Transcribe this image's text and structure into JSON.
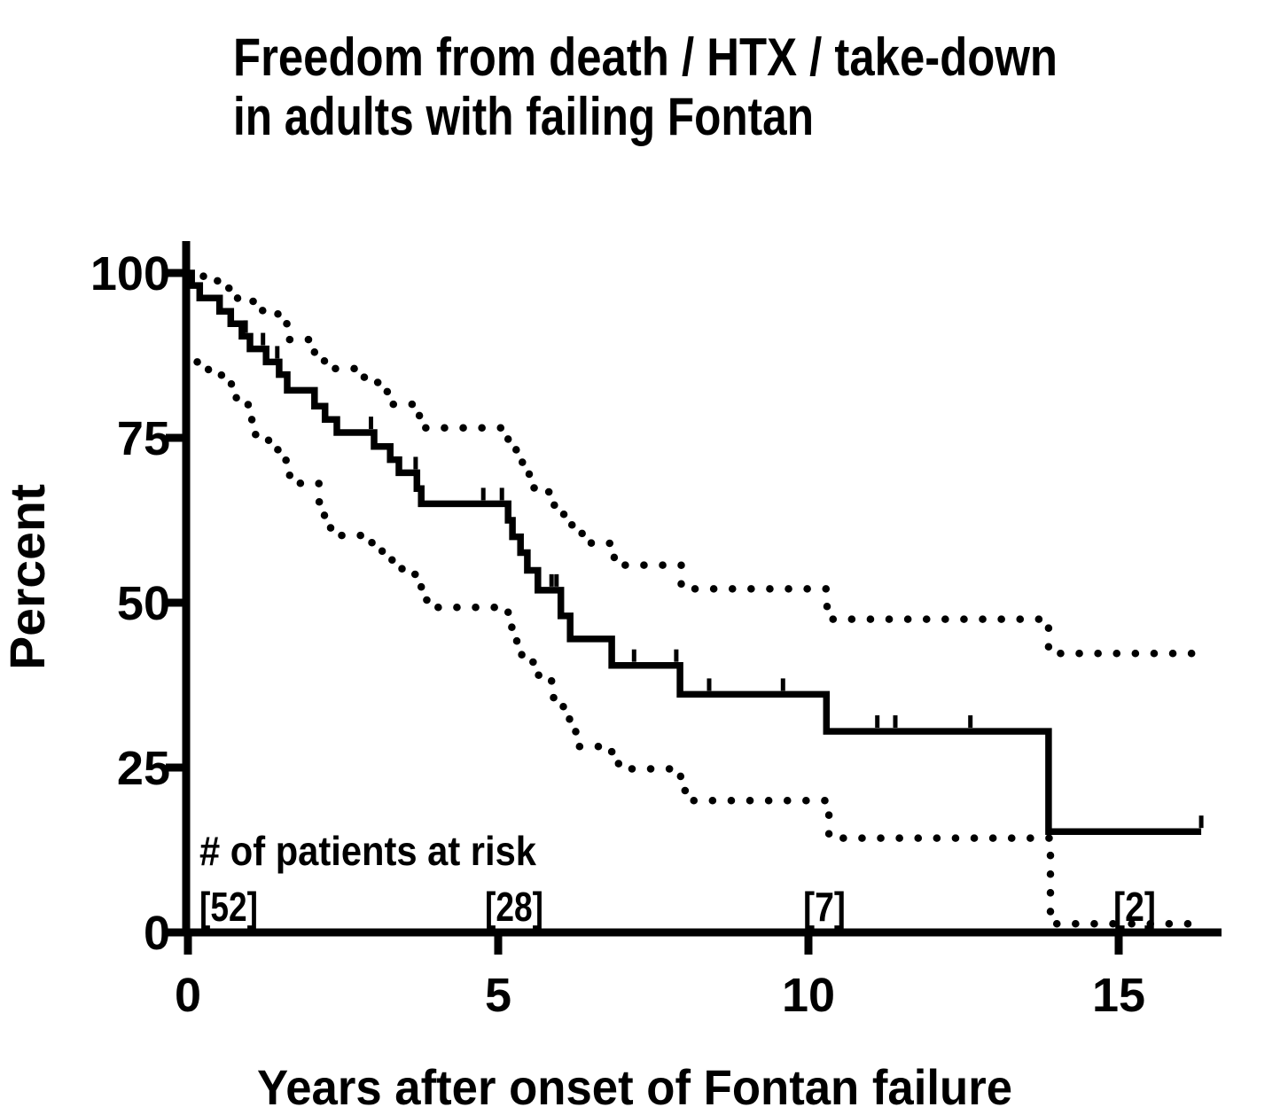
{
  "figure": {
    "background": "#ffffff"
  },
  "chart_data": {
    "type": "line",
    "subtype": "kaplan-meier-step-curve",
    "title_lines": [
      "Freedom from death / HTX / take-down",
      "in adults with failing Fontan"
    ],
    "xlabel": "Years after onset of Fontan failure",
    "ylabel": "Percent",
    "xlim": [
      0,
      16.7
    ],
    "ylim": [
      0,
      100
    ],
    "grid": false,
    "legend": "none",
    "colors": {
      "line": "#000000",
      "background": "#ffffff"
    },
    "x_ticks": [
      {
        "value": 0,
        "label": "0"
      },
      {
        "value": 5,
        "label": "5"
      },
      {
        "value": 10,
        "label": "10"
      },
      {
        "value": 15,
        "label": "15"
      }
    ],
    "y_ticks": [
      {
        "value": 0,
        "label": "0"
      },
      {
        "value": 25,
        "label": "25"
      },
      {
        "value": 50,
        "label": "50"
      },
      {
        "value": 75,
        "label": "75"
      },
      {
        "value": 100,
        "label": "100"
      }
    ],
    "series": [
      {
        "name": "survival-estimate",
        "style": "solid",
        "end_time": 16.33,
        "points": [
          [
            0,
            100
          ],
          [
            0.06,
            98.1
          ],
          [
            0.19,
            96.2
          ],
          [
            0.51,
            94.2
          ],
          [
            0.69,
            92.3
          ],
          [
            0.87,
            90.4
          ],
          [
            1.0,
            88.5
          ],
          [
            1.26,
            86.5
          ],
          [
            1.47,
            84.6
          ],
          [
            1.6,
            82.2
          ],
          [
            2.04,
            79.8
          ],
          [
            2.21,
            77.8
          ],
          [
            2.4,
            75.8
          ],
          [
            3.0,
            73.7
          ],
          [
            3.26,
            71.7
          ],
          [
            3.4,
            69.7
          ],
          [
            3.69,
            67.3
          ],
          [
            3.76,
            65.0
          ],
          [
            5.16,
            62.5
          ],
          [
            5.23,
            60.0
          ],
          [
            5.36,
            57.6
          ],
          [
            5.47,
            54.9
          ],
          [
            5.64,
            51.9
          ],
          [
            6.01,
            48.0
          ],
          [
            6.16,
            44.5
          ],
          [
            6.83,
            40.5
          ],
          [
            7.93,
            36.1
          ],
          [
            10.29,
            30.5
          ],
          [
            13.87,
            15.3
          ]
        ]
      },
      {
        "name": "upper-confidence-limit",
        "style": "dotted",
        "end_time": 16.3,
        "points": [
          [
            0,
            100
          ],
          [
            0.25,
            98.8
          ],
          [
            0.55,
            97.7
          ],
          [
            0.8,
            95.7
          ],
          [
            1.15,
            94.3
          ],
          [
            1.45,
            92.3
          ],
          [
            1.64,
            89.9
          ],
          [
            2.04,
            87.4
          ],
          [
            2.2,
            85.5
          ],
          [
            2.7,
            84.2
          ],
          [
            2.9,
            83.4
          ],
          [
            3.2,
            82.0
          ],
          [
            3.3,
            80.1
          ],
          [
            3.73,
            78.0
          ],
          [
            3.8,
            76.5
          ],
          [
            5.16,
            73.2
          ],
          [
            5.29,
            71.7
          ],
          [
            5.39,
            70.5
          ],
          [
            5.5,
            69.2
          ],
          [
            5.57,
            67.4
          ],
          [
            5.69,
            66.8
          ],
          [
            5.9,
            64.8
          ],
          [
            6.01,
            63.4
          ],
          [
            6.11,
            61.8
          ],
          [
            6.26,
            60.5
          ],
          [
            6.5,
            59.0
          ],
          [
            6.87,
            55.7
          ],
          [
            7.95,
            52.1
          ],
          [
            10.3,
            47.5
          ],
          [
            13.87,
            42.3
          ]
        ]
      },
      {
        "name": "lower-confidence-limit",
        "style": "dotted",
        "end_time": 16.2,
        "points": [
          [
            0.15,
            86.5
          ],
          [
            0.33,
            85.2
          ],
          [
            0.47,
            84.5
          ],
          [
            0.7,
            82.6
          ],
          [
            0.78,
            80.9
          ],
          [
            0.97,
            77.9
          ],
          [
            1.03,
            75.5
          ],
          [
            1.3,
            74.4
          ],
          [
            1.44,
            73.2
          ],
          [
            1.54,
            71.6
          ],
          [
            1.64,
            68.1
          ],
          [
            2.11,
            65.3
          ],
          [
            2.2,
            63.2
          ],
          [
            2.3,
            60.9
          ],
          [
            2.45,
            60.2
          ],
          [
            2.9,
            59.1
          ],
          [
            3.13,
            57.1
          ],
          [
            3.29,
            56.0
          ],
          [
            3.45,
            54.3
          ],
          [
            3.71,
            53.6
          ],
          [
            3.76,
            51.7
          ],
          [
            3.84,
            50.4
          ],
          [
            3.95,
            49.3
          ],
          [
            5.16,
            47.3
          ],
          [
            5.22,
            45.1
          ],
          [
            5.3,
            43.6
          ],
          [
            5.38,
            41.9
          ],
          [
            5.5,
            41.0
          ],
          [
            5.64,
            39.0
          ],
          [
            5.72,
            38.3
          ],
          [
            5.86,
            35.6
          ],
          [
            6.05,
            32.9
          ],
          [
            6.15,
            31.8
          ],
          [
            6.25,
            28.2
          ],
          [
            6.7,
            27.4
          ],
          [
            6.87,
            26.9
          ],
          [
            6.94,
            24.8
          ],
          [
            7.94,
            23.5
          ],
          [
            8.0,
            21.5
          ],
          [
            8.07,
            20.0
          ],
          [
            10.33,
            14.3
          ],
          [
            13.9,
            1.3
          ]
        ]
      }
    ],
    "censor_marks": [
      [
        0.93,
        90.4
      ],
      [
        1.21,
        88.5
      ],
      [
        1.44,
        86.5
      ],
      [
        2.41,
        75.8
      ],
      [
        2.95,
        75.8
      ],
      [
        3.67,
        69.7
      ],
      [
        4.76,
        65.0
      ],
      [
        5.06,
        65.0
      ],
      [
        5.86,
        51.9
      ],
      [
        5.94,
        51.9
      ],
      [
        7.19,
        40.5
      ],
      [
        7.87,
        40.5
      ],
      [
        8.4,
        36.1
      ],
      [
        9.59,
        36.1
      ],
      [
        11.11,
        30.5
      ],
      [
        11.4,
        30.5
      ],
      [
        12.61,
        30.5
      ],
      [
        16.33,
        15.3
      ]
    ],
    "at_risk": {
      "header": "# of patients at risk",
      "entries": [
        {
          "time": 0,
          "label": "[52]"
        },
        {
          "time": 5,
          "label": "[28]"
        },
        {
          "time": 10,
          "label": "[7]"
        },
        {
          "time": 15,
          "label": "[2]"
        }
      ]
    }
  }
}
